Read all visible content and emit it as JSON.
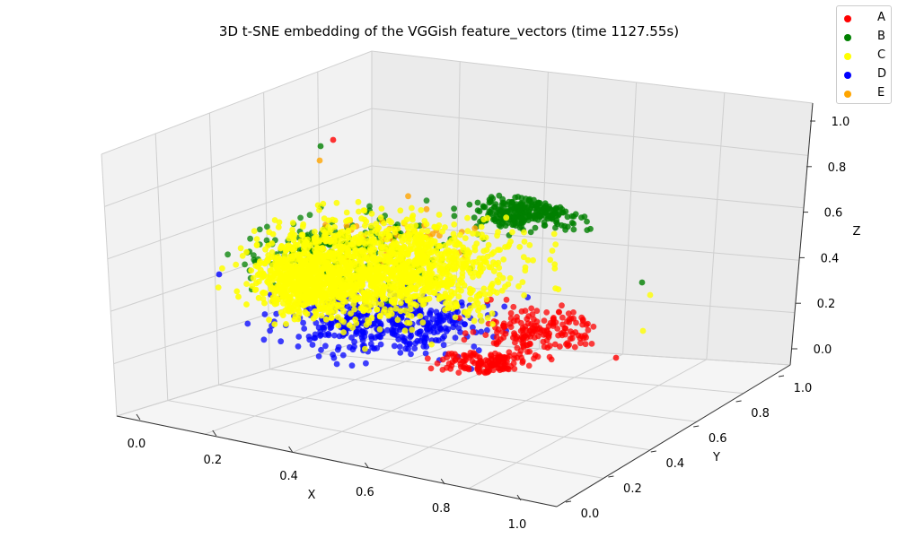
{
  "chart_data": {
    "type": "scatter",
    "projection": "3d",
    "title": "3D t-SNE embedding of the VGGish feature_vectors (time 1127.55s)",
    "xlabel": "X",
    "ylabel": "Y",
    "zlabel": "Z",
    "xlim": [
      0.0,
      1.0
    ],
    "ylim": [
      0.0,
      1.0
    ],
    "zlim": [
      0.0,
      1.0
    ],
    "xticks": [
      "0.0",
      "0.2",
      "0.4",
      "0.6",
      "0.8",
      "1.0"
    ],
    "yticks": [
      "0.0",
      "0.2",
      "0.4",
      "0.6",
      "0.8",
      "1.0"
    ],
    "zticks": [
      "0.0",
      "0.2",
      "0.4",
      "0.6",
      "0.8",
      "1.0"
    ],
    "grid": true,
    "legend_position": "top-right",
    "series": [
      {
        "name": "A",
        "color": "#ff0000"
      },
      {
        "name": "B",
        "color": "#008000"
      },
      {
        "name": "C",
        "color": "#ffff00"
      },
      {
        "name": "D",
        "color": "#0000ff"
      },
      {
        "name": "E",
        "color": "#ffa500"
      }
    ]
  }
}
